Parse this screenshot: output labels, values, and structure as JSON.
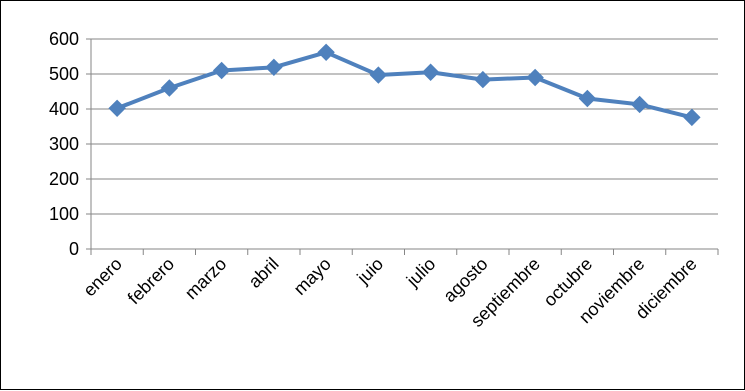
{
  "chart_data": {
    "type": "line",
    "categories": [
      "enero",
      "febrero",
      "marzo",
      "abril",
      "mayo",
      "juio",
      "julio",
      "agosto",
      "septiembre",
      "octubre",
      "noviembre",
      "diciembre"
    ],
    "series": [
      {
        "values": [
          402,
          460,
          510,
          519,
          562,
          497,
          505,
          484,
          490,
          430,
          413,
          376
        ]
      }
    ],
    "ylim": [
      0,
      600
    ],
    "yticks": [
      0,
      100,
      200,
      300,
      400,
      500,
      600
    ],
    "grid": "horizontal",
    "line_color": "#4F81BD",
    "marker": "diamond"
  }
}
